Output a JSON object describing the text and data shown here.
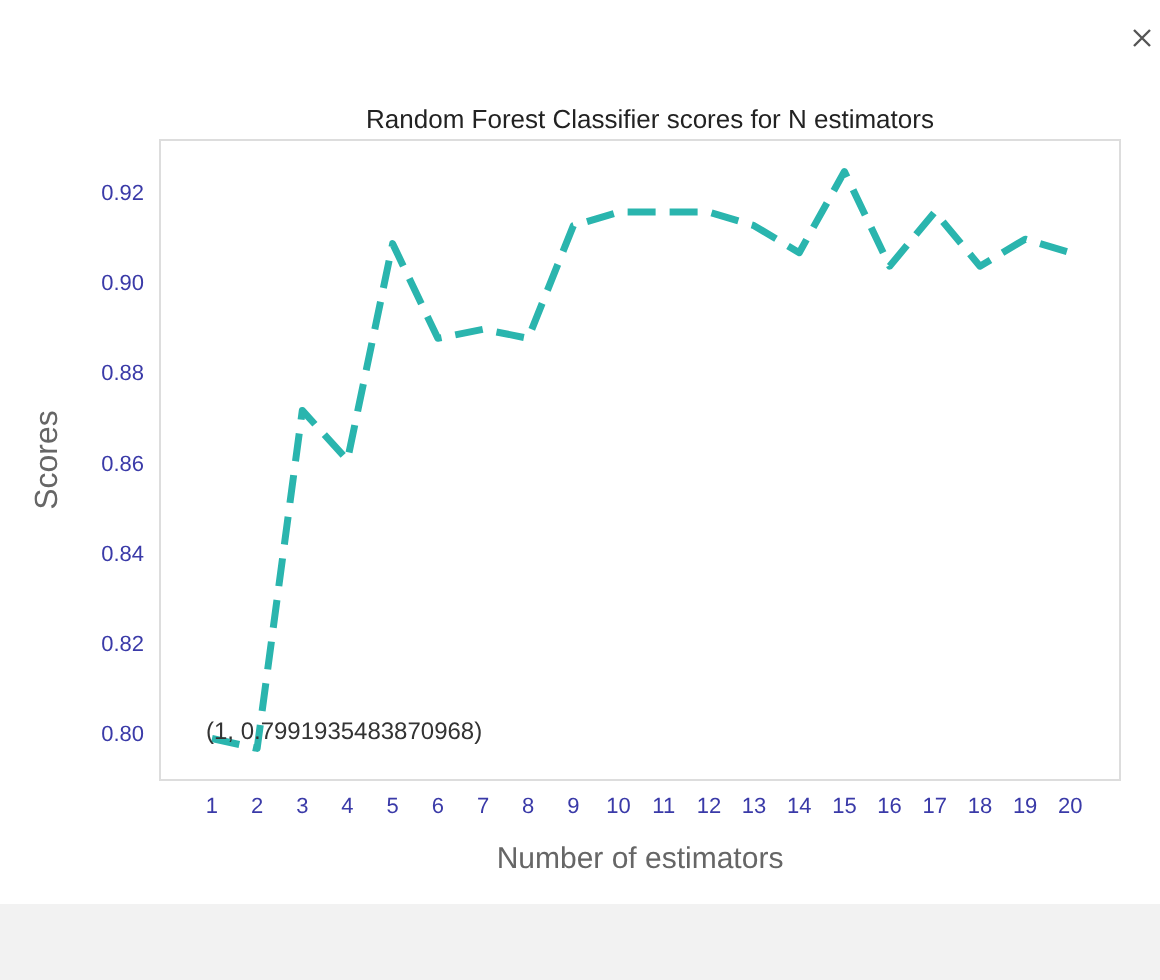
{
  "chart_data": {
    "type": "line",
    "title": "Random Forest Classifier scores for N estimators",
    "xlabel": "Number of estimators",
    "ylabel": "Scores",
    "x": [
      1,
      2,
      3,
      4,
      5,
      6,
      7,
      8,
      9,
      10,
      11,
      12,
      13,
      14,
      15,
      16,
      17,
      18,
      19,
      20
    ],
    "series": [
      {
        "color": "#2ab5ae",
        "values": [
          0.7992,
          0.797,
          0.872,
          0.861,
          0.909,
          0.888,
          0.89,
          0.888,
          0.913,
          0.916,
          0.916,
          0.916,
          0.913,
          0.907,
          0.925,
          0.904,
          0.916,
          0.904,
          0.91,
          0.907
        ]
      }
    ],
    "xlim": [
      -0.15,
      21.1
    ],
    "xticks": [
      1,
      2,
      3,
      4,
      5,
      6,
      7,
      8,
      9,
      10,
      11,
      12,
      13,
      14,
      15,
      16,
      17,
      18,
      19,
      20
    ],
    "ylim": [
      0.79,
      0.932
    ],
    "yticks": [
      {
        "value": 0.8,
        "label": "0.80"
      },
      {
        "value": 0.82,
        "label": "0.82"
      },
      {
        "value": 0.84,
        "label": "0.84"
      },
      {
        "value": 0.86,
        "label": "0.86"
      },
      {
        "value": 0.88,
        "label": "0.88"
      },
      {
        "value": 0.9,
        "label": "0.90"
      },
      {
        "value": 0.92,
        "label": "0.92"
      }
    ],
    "annotations": [
      {
        "text": "(1, 0.7991935483870968)",
        "x": 1,
        "y": 0.7991935483870968
      }
    ],
    "grid": false,
    "marker": "none",
    "line_style": "dashed"
  }
}
